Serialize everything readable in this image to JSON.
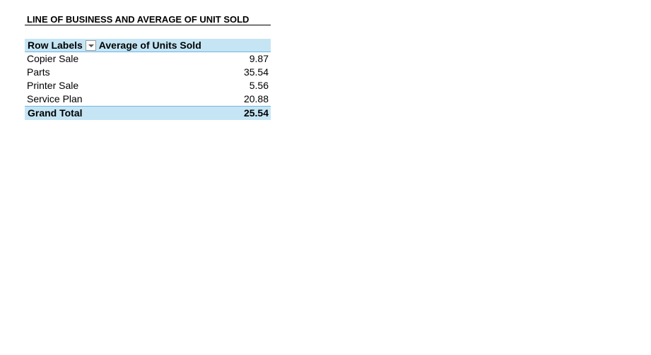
{
  "report": {
    "title": "LINE OF BUSINESS AND AVERAGE OF UNIT SOLD"
  },
  "pivot": {
    "header": {
      "row_labels": "Row Labels",
      "value_header": "Average of Units Sold"
    },
    "rows": [
      {
        "label": "Copier Sale",
        "value": "9.87"
      },
      {
        "label": "Parts",
        "value": "35.54"
      },
      {
        "label": "Printer Sale",
        "value": "5.56"
      },
      {
        "label": "Service Plan",
        "value": "20.88"
      }
    ],
    "grand_total": {
      "label": "Grand Total",
      "value": "25.54"
    }
  },
  "colors": {
    "header_fill": "#c5e5f5",
    "header_border": "#6fb7dd"
  },
  "icons": {
    "filter": "chevron-down-icon"
  }
}
